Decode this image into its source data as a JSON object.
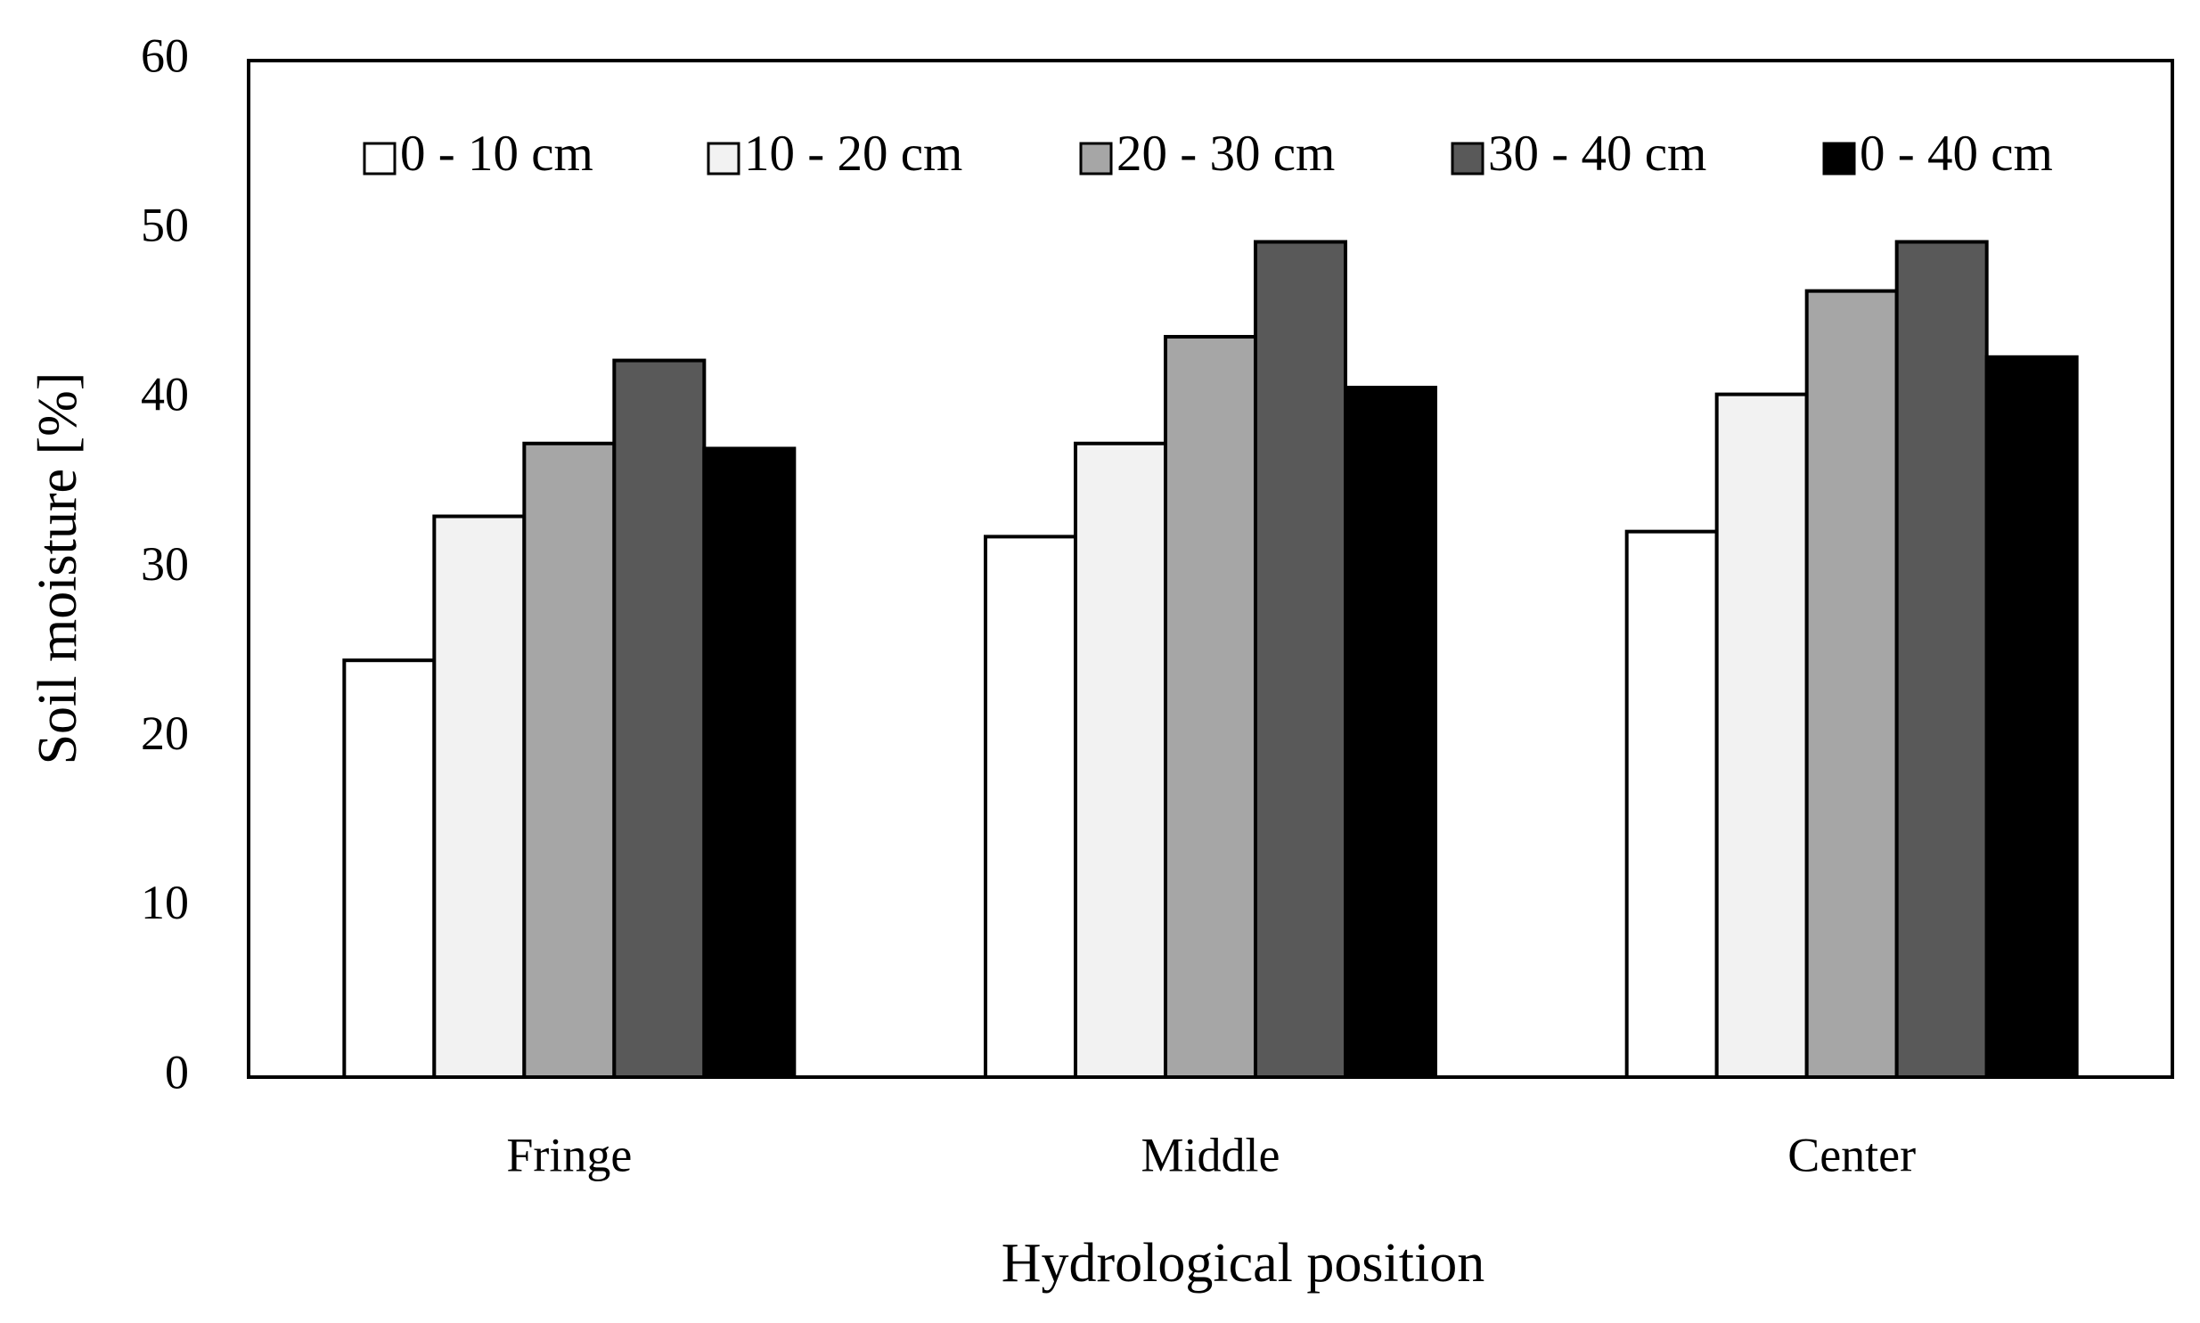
{
  "chart_data": {
    "type": "bar",
    "x_label": "Hydrological position",
    "y_label": "Soil moisture [%]",
    "categories": [
      "Fringe",
      "Middle",
      "Center"
    ],
    "series": [
      {
        "name": "0 - 10 cm",
        "color": "#ffffff",
        "values": [
          24.6,
          31.9,
          32.2
        ]
      },
      {
        "name": "10 - 20 cm",
        "color": "#f2f2f2",
        "values": [
          33.1,
          37.4,
          40.3
        ]
      },
      {
        "name": "20 - 30 cm",
        "color": "#a6a6a6",
        "values": [
          37.4,
          43.7,
          46.4
        ]
      },
      {
        "name": "30 - 40 cm",
        "color": "#595959",
        "values": [
          42.3,
          49.3,
          49.3
        ]
      },
      {
        "name": "0 - 40 cm",
        "color": "#000000",
        "values": [
          37.1,
          40.7,
          42.5
        ]
      }
    ],
    "ylim": [
      0,
      60
    ],
    "yticks": [
      0,
      10,
      20,
      30,
      40,
      50,
      60
    ],
    "grid": false,
    "legend": "top"
  }
}
